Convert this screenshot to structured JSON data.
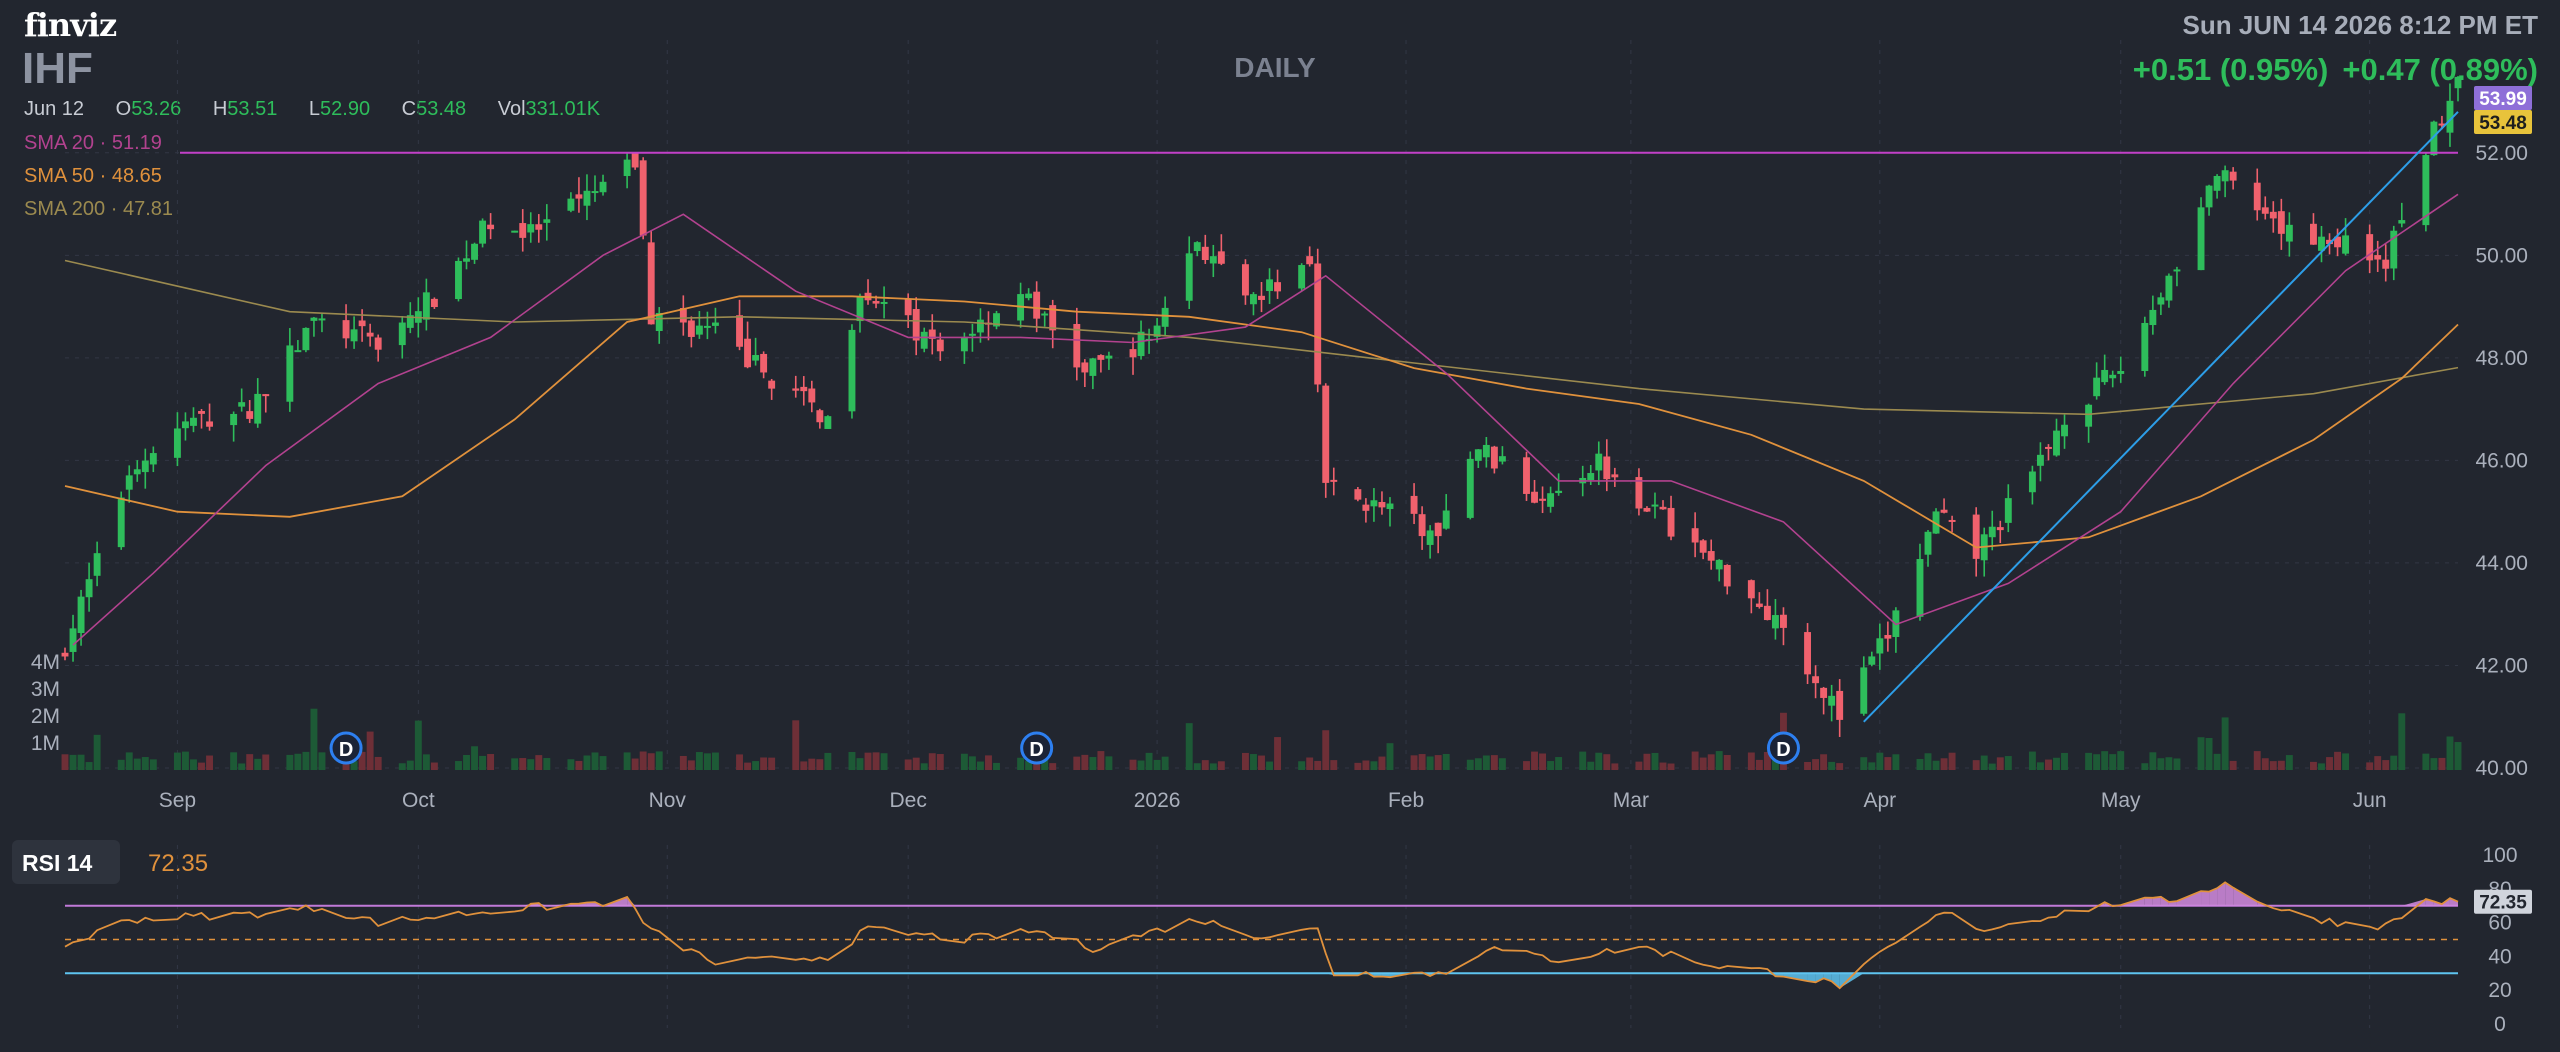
{
  "header": {
    "logo": "finviz",
    "ticker": "IHF",
    "timeframe": "DAILY",
    "datetime": "Sun JUN 14 2026 8:12 PM ET",
    "change_1": "+0.51 (0.95%)",
    "change_2": "+0.47 (0.89%)"
  },
  "ohlc": {
    "date": "Jun 12",
    "o_label": "O",
    "o": "53.26",
    "h_label": "H",
    "h": "53.51",
    "l_label": "L",
    "l": "52.90",
    "c_label": "C",
    "c": "53.48",
    "vol_label": "Vol",
    "vol": "331.01K"
  },
  "indicators": {
    "sma20": {
      "label": "SMA 20",
      "value": "51.19",
      "color": "#b2428f"
    },
    "sma50": {
      "label": "SMA 50",
      "value": "48.65",
      "color": "#e0913c"
    },
    "sma200": {
      "label": "SMA 200",
      "value": "47.81",
      "color": "#9b8a4f"
    },
    "sep": "·"
  },
  "price_tags": {
    "high": "53.99",
    "last": "53.48"
  },
  "rsi": {
    "label": "RSI 14",
    "value": "72.35"
  },
  "colors": {
    "background": "#22262f",
    "up": "#2ebd5b",
    "down": "#f0616d",
    "grid": "#323745",
    "resistance": "#c240c8",
    "trendline": "#2d9ee8",
    "rsi_line": "#e0913c",
    "rsi_upper": "#c17ad9",
    "rsi_lower": "#5ec4f0",
    "rsi_mid": "#e0913c"
  },
  "chart_data": [
    {
      "type": "candlestick",
      "title": "IHF",
      "timeframe": "DAILY",
      "ylim": [
        40,
        54.2
      ],
      "y_ticks": [
        "40.00",
        "42.00",
        "44.00",
        "46.00",
        "48.00",
        "50.00",
        "52.00"
      ],
      "x_ticks": [
        "Sep",
        "Oct",
        "Nov",
        "Dec",
        "2026",
        "Feb",
        "Mar",
        "Apr",
        "May",
        "Jun"
      ],
      "volume_ticks": [
        "1M",
        "2M",
        "3M",
        "4M"
      ],
      "dividend_marker": "D",
      "dividend_dates": [
        "2025-09-22",
        "2025-12-17",
        "2026-03-20"
      ],
      "anchor_points": [
        {
          "date": "2025-08-18",
          "close": 42.4
        },
        {
          "date": "2025-08-22",
          "close": 44.0
        },
        {
          "date": "2025-08-26",
          "close": 45.8
        },
        {
          "date": "2025-09-02",
          "close": 46.7
        },
        {
          "date": "2025-09-10",
          "close": 47.0
        },
        {
          "date": "2025-09-18",
          "close": 48.7
        },
        {
          "date": "2025-09-26",
          "close": 48.3
        },
        {
          "date": "2025-10-03",
          "close": 49.2
        },
        {
          "date": "2025-10-10",
          "close": 50.7
        },
        {
          "date": "2025-10-15",
          "close": 50.4
        },
        {
          "date": "2025-10-20",
          "close": 50.9
        },
        {
          "date": "2025-10-28",
          "close": 51.8
        },
        {
          "date": "2025-10-30",
          "close": 48.8
        },
        {
          "date": "2025-11-07",
          "close": 48.5
        },
        {
          "date": "2025-11-14",
          "close": 47.6
        },
        {
          "date": "2025-11-21",
          "close": 46.8
        },
        {
          "date": "2025-11-25",
          "close": 49.4
        },
        {
          "date": "2025-12-05",
          "close": 48.1
        },
        {
          "date": "2025-12-15",
          "close": 49.3
        },
        {
          "date": "2025-12-23",
          "close": 47.7
        },
        {
          "date": "2025-12-31",
          "close": 48.4
        },
        {
          "date": "2026-01-06",
          "close": 50.3
        },
        {
          "date": "2026-01-12",
          "close": 49.0
        },
        {
          "date": "2026-01-20",
          "close": 49.9
        },
        {
          "date": "2026-01-22",
          "close": 45.5
        },
        {
          "date": "2026-01-30",
          "close": 45.0
        },
        {
          "date": "2026-02-05",
          "close": 44.5
        },
        {
          "date": "2026-02-10",
          "close": 46.3
        },
        {
          "date": "2026-02-17",
          "close": 45.3
        },
        {
          "date": "2026-02-25",
          "close": 46.0
        },
        {
          "date": "2026-03-04",
          "close": 45.0
        },
        {
          "date": "2026-03-12",
          "close": 43.9
        },
        {
          "date": "2026-03-20",
          "close": 42.8
        },
        {
          "date": "2026-03-27",
          "close": 41.0
        },
        {
          "date": "2026-04-02",
          "close": 42.6
        },
        {
          "date": "2026-04-08",
          "close": 44.9
        },
        {
          "date": "2026-04-13",
          "close": 44.2
        },
        {
          "date": "2026-04-20",
          "close": 45.7
        },
        {
          "date": "2026-04-24",
          "close": 46.9
        },
        {
          "date": "2026-05-01",
          "close": 47.8
        },
        {
          "date": "2026-05-08",
          "close": 49.9
        },
        {
          "date": "2026-05-13",
          "close": 51.6
        },
        {
          "date": "2026-05-20",
          "close": 50.5
        },
        {
          "date": "2026-05-28",
          "close": 50.3
        },
        {
          "date": "2026-06-03",
          "close": 49.9
        },
        {
          "date": "2026-06-08",
          "close": 52.1
        },
        {
          "date": "2026-06-12",
          "close": 53.48
        }
      ],
      "sma20_points": [
        {
          "date": "2025-08-19",
          "value": 42.4
        },
        {
          "date": "2025-08-29",
          "value": 43.8
        },
        {
          "date": "2025-09-12",
          "value": 45.9
        },
        {
          "date": "2025-09-26",
          "value": 47.5
        },
        {
          "date": "2025-10-10",
          "value": 48.4
        },
        {
          "date": "2025-10-24",
          "value": 50.0
        },
        {
          "date": "2025-11-03",
          "value": 50.8
        },
        {
          "date": "2025-11-17",
          "value": 49.3
        },
        {
          "date": "2025-12-01",
          "value": 48.4
        },
        {
          "date": "2025-12-15",
          "value": 48.4
        },
        {
          "date": "2025-12-29",
          "value": 48.3
        },
        {
          "date": "2026-01-12",
          "value": 48.6
        },
        {
          "date": "2026-01-22",
          "value": 49.6
        },
        {
          "date": "2026-02-06",
          "value": 47.7
        },
        {
          "date": "2026-02-20",
          "value": 45.6
        },
        {
          "date": "2026-03-06",
          "value": 45.6
        },
        {
          "date": "2026-03-20",
          "value": 44.8
        },
        {
          "date": "2026-04-03",
          "value": 42.8
        },
        {
          "date": "2026-04-17",
          "value": 43.6
        },
        {
          "date": "2026-05-01",
          "value": 45.0
        },
        {
          "date": "2026-05-15",
          "value": 47.5
        },
        {
          "date": "2026-05-29",
          "value": 49.7
        },
        {
          "date": "2026-06-12",
          "value": 51.19
        }
      ],
      "sma50_points": [
        {
          "date": "2025-08-18",
          "value": 45.5
        },
        {
          "date": "2025-09-01",
          "value": 45.0
        },
        {
          "date": "2025-09-15",
          "value": 44.9
        },
        {
          "date": "2025-09-29",
          "value": 45.3
        },
        {
          "date": "2025-10-13",
          "value": 46.8
        },
        {
          "date": "2025-10-27",
          "value": 48.7
        },
        {
          "date": "2025-11-10",
          "value": 49.2
        },
        {
          "date": "2025-11-24",
          "value": 49.2
        },
        {
          "date": "2025-12-08",
          "value": 49.1
        },
        {
          "date": "2025-12-22",
          "value": 48.9
        },
        {
          "date": "2026-01-05",
          "value": 48.8
        },
        {
          "date": "2026-01-19",
          "value": 48.5
        },
        {
          "date": "2026-02-02",
          "value": 47.8
        },
        {
          "date": "2026-02-16",
          "value": 47.4
        },
        {
          "date": "2026-03-02",
          "value": 47.1
        },
        {
          "date": "2026-03-16",
          "value": 46.5
        },
        {
          "date": "2026-03-30",
          "value": 45.6
        },
        {
          "date": "2026-04-13",
          "value": 44.3
        },
        {
          "date": "2026-04-27",
          "value": 44.5
        },
        {
          "date": "2026-05-11",
          "value": 45.3
        },
        {
          "date": "2026-05-25",
          "value": 46.4
        },
        {
          "date": "2026-06-05",
          "value": 47.6
        },
        {
          "date": "2026-06-12",
          "value": 48.65
        }
      ],
      "sma200_points": [
        {
          "date": "2025-08-18",
          "value": 49.9
        },
        {
          "date": "2025-09-15",
          "value": 48.9
        },
        {
          "date": "2025-10-13",
          "value": 48.7
        },
        {
          "date": "2025-11-10",
          "value": 48.8
        },
        {
          "date": "2025-12-08",
          "value": 48.7
        },
        {
          "date": "2026-01-05",
          "value": 48.4
        },
        {
          "date": "2026-02-02",
          "value": 47.9
        },
        {
          "date": "2026-03-02",
          "value": 47.4
        },
        {
          "date": "2026-03-30",
          "value": 47.0
        },
        {
          "date": "2026-04-27",
          "value": 46.9
        },
        {
          "date": "2026-05-25",
          "value": 47.3
        },
        {
          "date": "2026-06-12",
          "value": 47.81
        }
      ],
      "resistance_level": 52.0,
      "trendline": {
        "from": {
          "date": "2026-03-30",
          "value": 40.9
        },
        "to": {
          "date": "2026-06-12",
          "value": 52.8
        }
      }
    },
    {
      "type": "line",
      "title": "RSI 14",
      "ylim": [
        0,
        100
      ],
      "y_ticks": [
        "0",
        "20",
        "40",
        "60",
        "80",
        "100"
      ],
      "levels": {
        "overbought": 70,
        "middle": 50,
        "oversold": 30
      },
      "last_value": 72.35,
      "anchor_points": [
        {
          "date": "2025-08-18",
          "value": 46
        },
        {
          "date": "2025-08-26",
          "value": 62
        },
        {
          "date": "2025-09-10",
          "value": 65
        },
        {
          "date": "2025-09-19",
          "value": 69
        },
        {
          "date": "2025-09-26",
          "value": 60
        },
        {
          "date": "2025-10-10",
          "value": 67
        },
        {
          "date": "2025-10-27",
          "value": 73
        },
        {
          "date": "2025-10-30",
          "value": 55
        },
        {
          "date": "2025-11-07",
          "value": 36
        },
        {
          "date": "2025-11-21",
          "value": 40
        },
        {
          "date": "2025-11-26",
          "value": 56
        },
        {
          "date": "2025-12-08",
          "value": 50
        },
        {
          "date": "2025-12-17",
          "value": 55
        },
        {
          "date": "2025-12-24",
          "value": 45
        },
        {
          "date": "2026-01-06",
          "value": 62
        },
        {
          "date": "2026-01-14",
          "value": 52
        },
        {
          "date": "2026-01-21",
          "value": 56
        },
        {
          "date": "2026-01-23",
          "value": 30
        },
        {
          "date": "2026-02-06",
          "value": 30
        },
        {
          "date": "2026-02-11",
          "value": 45
        },
        {
          "date": "2026-02-20",
          "value": 38
        },
        {
          "date": "2026-03-02",
          "value": 46
        },
        {
          "date": "2026-03-11",
          "value": 35
        },
        {
          "date": "2026-03-20",
          "value": 30
        },
        {
          "date": "2026-03-27",
          "value": 23
        },
        {
          "date": "2026-04-02",
          "value": 44
        },
        {
          "date": "2026-04-09",
          "value": 66
        },
        {
          "date": "2026-04-14",
          "value": 56
        },
        {
          "date": "2026-04-24",
          "value": 66
        },
        {
          "date": "2026-05-01",
          "value": 72
        },
        {
          "date": "2026-05-07",
          "value": 73
        },
        {
          "date": "2026-05-14",
          "value": 83
        },
        {
          "date": "2026-05-21",
          "value": 67
        },
        {
          "date": "2026-05-28",
          "value": 60
        },
        {
          "date": "2026-06-03",
          "value": 58
        },
        {
          "date": "2026-06-08",
          "value": 73
        },
        {
          "date": "2026-06-12",
          "value": 72.35
        }
      ]
    }
  ]
}
